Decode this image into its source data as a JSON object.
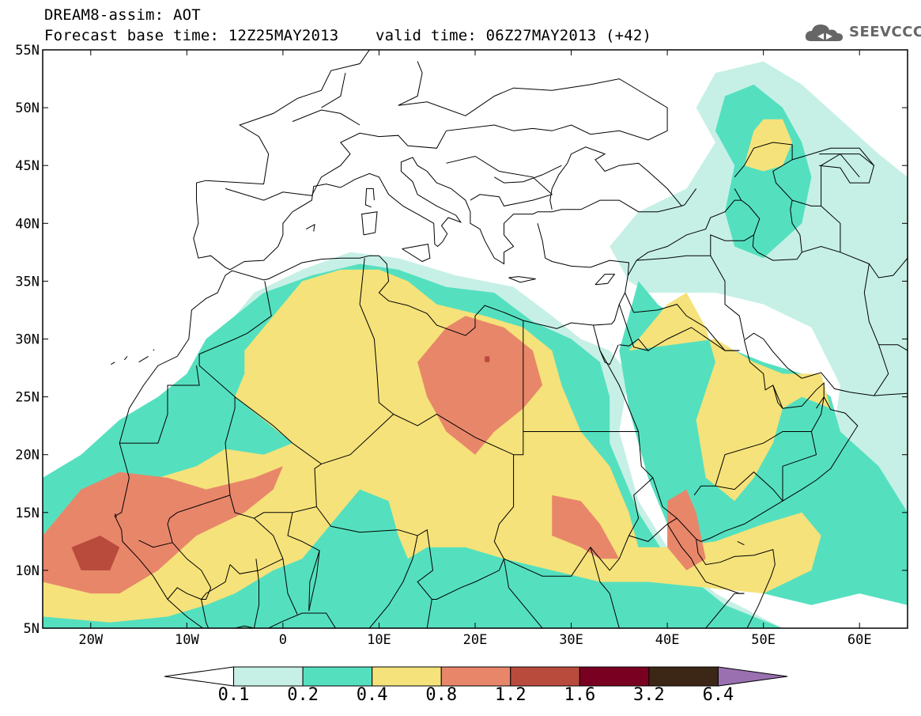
{
  "title": {
    "line1": "DREAM8-assim: AOT",
    "line2": "Forecast base time: 12Z25MAY2013    valid time: 06Z27MAY2013 (+42)"
  },
  "logo": {
    "text": "SEEVCCC",
    "icon": "cloud-logo-icon"
  },
  "axes": {
    "y_ticks": [
      "55N",
      "50N",
      "45N",
      "40N",
      "35N",
      "30N",
      "25N",
      "20N",
      "15N",
      "10N",
      "5N"
    ],
    "x_ticks": [
      "20W",
      "10W",
      "0",
      "10E",
      "20E",
      "30E",
      "40E",
      "50E",
      "60E"
    ]
  },
  "colorbar": {
    "labels": [
      "0.1",
      "0.2",
      "0.4",
      "0.8",
      "1.2",
      "1.6",
      "3.2",
      "6.4"
    ],
    "colors": [
      "#ffffff",
      "#c6f0e6",
      "#54e0bf",
      "#f5e27a",
      "#e8866a",
      "#b94b3c",
      "#7a0022",
      "#3c2615",
      "#9a70b0"
    ]
  },
  "chart_data": {
    "type": "heatmap",
    "variable": "AOT",
    "lon_range": [
      -25,
      65
    ],
    "lat_range": [
      5,
      55
    ],
    "levels": [
      0.1,
      0.2,
      0.4,
      0.8,
      1.2,
      1.6,
      3.2,
      6.4
    ],
    "colors": {
      "lt_0.1": "#ffffff",
      "0.1-0.2": "#c6f0e6",
      "0.2-0.4": "#54e0bf",
      "0.4-0.8": "#f5e27a",
      "0.8-1.2": "#e8866a",
      "1.2-1.6": "#b94b3c",
      "1.6-3.2": "#7a0022",
      "3.2-6.4": "#3c2615",
      "gt_6.4": "#9a70b0"
    },
    "regions": [
      {
        "level": 0.1,
        "polygon": [
          [
            -25,
            17
          ],
          [
            -22,
            19
          ],
          [
            -17,
            22
          ],
          [
            -14,
            24
          ],
          [
            -11,
            26
          ],
          [
            -8,
            29
          ],
          [
            -6,
            31
          ],
          [
            -3,
            34
          ],
          [
            2,
            36
          ],
          [
            7,
            37.5
          ],
          [
            12,
            37
          ],
          [
            18,
            35.5
          ],
          [
            24,
            34.5
          ],
          [
            28,
            32
          ],
          [
            31,
            30
          ],
          [
            34,
            29
          ],
          [
            36,
            27
          ],
          [
            35,
            22
          ],
          [
            37,
            16
          ],
          [
            40,
            12
          ],
          [
            45,
            8
          ],
          [
            52,
            5
          ],
          [
            -25,
            5
          ]
        ]
      },
      {
        "level": 0.1,
        "polygon": [
          [
            34,
            38
          ],
          [
            37,
            41
          ],
          [
            42,
            43
          ],
          [
            45,
            47
          ],
          [
            43,
            50
          ],
          [
            45,
            53
          ],
          [
            50,
            54
          ],
          [
            54,
            52
          ],
          [
            58,
            49
          ],
          [
            62,
            46
          ],
          [
            65,
            44
          ],
          [
            65,
            10
          ],
          [
            60,
            14
          ],
          [
            57,
            20
          ],
          [
            58,
            26
          ],
          [
            55,
            31
          ],
          [
            50,
            33
          ],
          [
            45,
            34
          ],
          [
            41,
            34
          ],
          [
            38,
            34
          ],
          [
            36,
            35
          ]
        ]
      },
      {
        "level": 0.2,
        "polygon": [
          [
            -25,
            18
          ],
          [
            -21,
            20
          ],
          [
            -17,
            23
          ],
          [
            -13,
            25
          ],
          [
            -10,
            27
          ],
          [
            -8,
            30
          ],
          [
            -5,
            32
          ],
          [
            -2,
            34
          ],
          [
            3,
            35.5
          ],
          [
            8,
            36.5
          ],
          [
            12,
            36
          ],
          [
            17,
            34.5
          ],
          [
            22,
            34
          ],
          [
            26,
            31.5
          ],
          [
            30,
            30
          ],
          [
            33,
            28
          ],
          [
            34,
            25
          ],
          [
            34,
            21
          ],
          [
            37,
            15
          ],
          [
            40,
            11
          ],
          [
            46,
            7
          ],
          [
            52,
            5
          ],
          [
            -25,
            5
          ]
        ]
      },
      {
        "level": 0.2,
        "polygon": [
          [
            37,
            35
          ],
          [
            39,
            33
          ],
          [
            44,
            30
          ],
          [
            47,
            29
          ],
          [
            50,
            28
          ],
          [
            54,
            27
          ],
          [
            57,
            25
          ],
          [
            58,
            22
          ],
          [
            62,
            19
          ],
          [
            65,
            15
          ],
          [
            65,
            7
          ],
          [
            60,
            8
          ],
          [
            55,
            7
          ],
          [
            50,
            8
          ],
          [
            46,
            9
          ],
          [
            42,
            11
          ],
          [
            40,
            14
          ],
          [
            38,
            18
          ],
          [
            36,
            24
          ],
          [
            35,
            29
          ]
        ]
      },
      {
        "level": 0.2,
        "polygon": [
          [
            46,
            41
          ],
          [
            47,
            45
          ],
          [
            45,
            48
          ],
          [
            46,
            51
          ],
          [
            49,
            52
          ],
          [
            52,
            50
          ],
          [
            54,
            47
          ],
          [
            55,
            44
          ],
          [
            54,
            40
          ],
          [
            50,
            37
          ],
          [
            47,
            38
          ]
        ]
      },
      {
        "level": 0.4,
        "polygon": [
          [
            -25,
            6
          ],
          [
            -25,
            13
          ],
          [
            -22,
            16
          ],
          [
            -17,
            18
          ],
          [
            -13,
            18
          ],
          [
            -9,
            19
          ],
          [
            -6,
            20.5
          ],
          [
            -2,
            20
          ],
          [
            1,
            21
          ],
          [
            -2,
            23
          ],
          [
            -5,
            25
          ],
          [
            -4,
            27
          ],
          [
            -4,
            29
          ],
          [
            -2,
            31
          ],
          [
            0,
            33
          ],
          [
            2,
            35
          ],
          [
            6,
            36
          ],
          [
            10,
            36
          ],
          [
            13,
            35
          ],
          [
            16,
            33
          ],
          [
            21,
            32
          ],
          [
            25,
            31
          ],
          [
            28,
            29
          ],
          [
            29,
            26
          ],
          [
            31,
            22
          ],
          [
            34,
            19
          ],
          [
            36,
            15
          ],
          [
            37,
            12
          ],
          [
            40,
            12
          ],
          [
            45,
            12.5
          ],
          [
            50,
            14
          ],
          [
            54,
            15
          ],
          [
            56,
            13
          ],
          [
            55,
            10
          ],
          [
            50,
            8
          ],
          [
            44,
            8.5
          ],
          [
            38,
            9
          ],
          [
            33,
            9
          ],
          [
            28,
            10
          ],
          [
            23,
            11
          ],
          [
            19,
            12
          ],
          [
            15,
            12
          ],
          [
            13,
            11
          ],
          [
            12,
            13
          ],
          [
            11,
            16
          ],
          [
            8,
            17
          ],
          [
            6,
            15
          ],
          [
            4,
            13
          ],
          [
            2,
            11
          ],
          [
            -1,
            10
          ],
          [
            -5,
            8
          ],
          [
            -8,
            7
          ],
          [
            -12,
            6
          ],
          [
            -18,
            5.5
          ]
        ]
      },
      {
        "level": 0.4,
        "polygon": [
          [
            36,
            29
          ],
          [
            40,
            33
          ],
          [
            42,
            34
          ],
          [
            44,
            31
          ],
          [
            45,
            28
          ],
          [
            43,
            23
          ],
          [
            44,
            18
          ],
          [
            47,
            16
          ],
          [
            49,
            18
          ],
          [
            51,
            21
          ],
          [
            52,
            24
          ],
          [
            54,
            25
          ],
          [
            57,
            24
          ],
          [
            56,
            27
          ],
          [
            52,
            27
          ],
          [
            49,
            28
          ],
          [
            45,
            30
          ]
        ]
      },
      {
        "level": 0.4,
        "polygon": [
          [
            48,
            45
          ],
          [
            49,
            48
          ],
          [
            50,
            49
          ],
          [
            52,
            49
          ],
          [
            53,
            47
          ],
          [
            52,
            45
          ],
          [
            50,
            44.5
          ]
        ]
      },
      {
        "level": 0.8,
        "polygon": [
          [
            -25,
            13
          ],
          [
            -21,
            17
          ],
          [
            -17,
            18.5
          ],
          [
            -12,
            18
          ],
          [
            -8,
            17
          ],
          [
            -3,
            18
          ],
          [
            0,
            19
          ],
          [
            -1,
            17
          ],
          [
            -4,
            15
          ],
          [
            -9,
            13
          ],
          [
            -13,
            10
          ],
          [
            -15,
            9
          ],
          [
            -17,
            8
          ],
          [
            -20,
            8
          ],
          [
            -25,
            9
          ]
        ]
      },
      {
        "level": 0.8,
        "polygon": [
          [
            17,
            31
          ],
          [
            19,
            32
          ],
          [
            23,
            31
          ],
          [
            26,
            29
          ],
          [
            27,
            26
          ],
          [
            25,
            24
          ],
          [
            22,
            22
          ],
          [
            20,
            20
          ],
          [
            17,
            22
          ],
          [
            15,
            25
          ],
          [
            14,
            28
          ]
        ]
      },
      {
        "level": 0.8,
        "polygon": [
          [
            28,
            16.5
          ],
          [
            31,
            16
          ],
          [
            33,
            14
          ],
          [
            35,
            11
          ],
          [
            33,
            11
          ],
          [
            31,
            12
          ],
          [
            28,
            13
          ]
        ]
      },
      {
        "level": 0.8,
        "polygon": [
          [
            40,
            16
          ],
          [
            42,
            17
          ],
          [
            43,
            15
          ],
          [
            44,
            11
          ],
          [
            42,
            10
          ],
          [
            40,
            12
          ]
        ]
      },
      {
        "level": 1.2,
        "polygon": [
          [
            -22,
            12
          ],
          [
            -19,
            13
          ],
          [
            -17,
            12
          ],
          [
            -18,
            10
          ],
          [
            -21,
            10
          ]
        ]
      },
      {
        "level": 1.2,
        "polygon": [
          [
            21,
            28.5
          ],
          [
            21.5,
            28.5
          ],
          [
            21.5,
            28
          ],
          [
            21,
            28
          ]
        ]
      }
    ]
  }
}
